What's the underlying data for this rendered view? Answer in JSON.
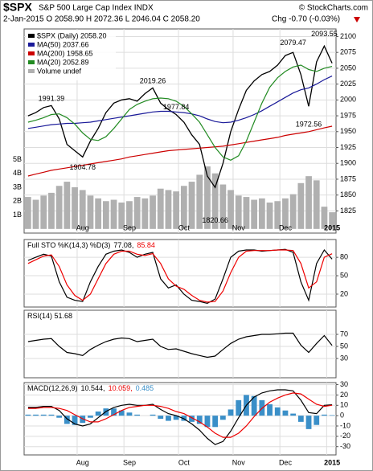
{
  "chart_data": [
    {
      "type": "line",
      "title": "$SPX",
      "subtitle": "S&P 500 Large Cap Index INDX",
      "source": "© StockCharts.com",
      "quote": "2-Jan-2015 O 2058.90 H 2072.36 L 2046.04 C 2058.20",
      "change": "Chg -0.70 (-0.03%)",
      "categories": [
        null,
        null,
        null,
        null,
        null,
        null,
        null,
        "Aug",
        null,
        null,
        null,
        null,
        null,
        "Sep",
        null,
        null,
        null,
        null,
        null,
        null,
        "Oct",
        null,
        null,
        null,
        null,
        null,
        null,
        "Nov",
        null,
        null,
        null,
        null,
        null,
        "Dec",
        null,
        null,
        null,
        null,
        null,
        "2015"
      ],
      "ylim": [
        1790,
        2112
      ],
      "yticks": [
        1825,
        1850,
        1875,
        1900,
        1925,
        1950,
        1975,
        2000,
        2025,
        2050,
        2075,
        2100
      ],
      "series": [
        {
          "name": "$SPX (Daily) 2058.20",
          "color": "#000000",
          "values": [
            1975,
            1980,
            1988,
            1991,
            1970,
            1930,
            1920,
            1910,
            1935,
            1955,
            1980,
            1995,
            2000,
            2002,
            1998,
            2010,
            2019,
            1995,
            1985,
            1977,
            1965,
            1945,
            1930,
            1880,
            1862,
            1900,
            1950,
            1985,
            2015,
            2030,
            2040,
            2045,
            2055,
            2070,
            2075,
            2040,
            1990,
            2060,
            2085,
            2058
          ]
        },
        {
          "name": "MA(50) 2037.66",
          "color": "#1a1a99",
          "values": [
            1955,
            1957,
            1959,
            1961,
            1962,
            1963,
            1963,
            1964,
            1965,
            1967,
            1969,
            1971,
            1973,
            1975,
            1977,
            1979,
            1981,
            1982,
            1982,
            1981,
            1980,
            1978,
            1975,
            1970,
            1966,
            1964,
            1965,
            1968,
            1972,
            1977,
            1983,
            1990,
            1997,
            2004,
            2011,
            2016,
            2019,
            2025,
            2032,
            2037.66
          ]
        },
        {
          "name": "MA(200) 1958.65",
          "color": "#cc0000",
          "values": [
            1880,
            1883,
            1886,
            1889,
            1891,
            1893,
            1895,
            1897,
            1899,
            1901,
            1903,
            1905,
            1907,
            1910,
            1912,
            1914,
            1916,
            1918,
            1920,
            1921,
            1922,
            1923,
            1924,
            1925,
            1926,
            1927,
            1929,
            1931,
            1933,
            1935,
            1937,
            1939,
            1941,
            1944,
            1946,
            1948,
            1950,
            1953,
            1956,
            1958.65
          ]
        },
        {
          "name": "MA(20) 2052.89",
          "color": "#228b22",
          "values": [
            1965,
            1968,
            1972,
            1977,
            1978,
            1972,
            1962,
            1948,
            1938,
            1936,
            1942,
            1955,
            1970,
            1985,
            1993,
            1998,
            2002,
            2003,
            2002,
            1998,
            1990,
            1978,
            1965,
            1945,
            1925,
            1910,
            1905,
            1912,
            1935,
            1965,
            1995,
            2020,
            2035,
            2045,
            2052,
            2055,
            2048,
            2045,
            2050,
            2052.89
          ]
        }
      ],
      "volume": {
        "name": "Volume undef",
        "color": "#b0b0b0",
        "values": [
          2.3,
          2.1,
          2.4,
          2.6,
          3.1,
          3.4,
          3.0,
          2.8,
          2.4,
          2.2,
          2.0,
          2.1,
          1.9,
          2.0,
          2.3,
          2.2,
          2.4,
          2.9,
          2.8,
          2.7,
          3.1,
          3.4,
          3.9,
          4.5,
          4.0,
          3.2,
          2.8,
          2.4,
          2.3,
          2.1,
          2.2,
          1.9,
          2.0,
          2.2,
          2.5,
          3.3,
          3.8,
          3.5,
          1.6,
          1.2
        ]
      },
      "vlim": [
        -0.3,
        14.4
      ],
      "vticks": [
        {
          "value": 1,
          "label": "1B"
        },
        {
          "value": 2,
          "label": "2B"
        },
        {
          "value": 3,
          "label": "3B"
        },
        {
          "value": 4,
          "label": "4B"
        },
        {
          "value": 5,
          "label": "5B"
        }
      ],
      "annotations": [
        1991.39,
        1904.78,
        2019.26,
        1977.84,
        1820.66,
        2079.47,
        2093.55,
        1972.56
      ]
    },
    {
      "type": "line",
      "title": "Full STO %K(14,3) %D(3)",
      "ylim": [
        -1,
        109
      ],
      "yticks": [
        20,
        50,
        80
      ],
      "series": [
        {
          "name": "77.08,",
          "color": "#000000",
          "values": [
            75,
            80,
            85,
            82,
            40,
            15,
            10,
            8,
            40,
            65,
            85,
            90,
            92,
            88,
            80,
            85,
            88,
            45,
            30,
            35,
            20,
            10,
            8,
            5,
            12,
            45,
            80,
            90,
            92,
            92,
            90,
            91,
            92,
            93,
            88,
            40,
            10,
            70,
            92,
            77.08
          ]
        },
        {
          "name": "85.84",
          "color": "#ee0000",
          "values": [
            70,
            76,
            82,
            84,
            65,
            35,
            18,
            10,
            20,
            45,
            70,
            85,
            90,
            90,
            85,
            83,
            86,
            70,
            45,
            33,
            28,
            18,
            10,
            7,
            8,
            25,
            55,
            80,
            90,
            91,
            91,
            91,
            92,
            92,
            91,
            70,
            30,
            40,
            80,
            85.84
          ]
        }
      ]
    },
    {
      "type": "line",
      "title": "RSI(14) 51.68",
      "ylim": [
        -2,
        110
      ],
      "yticks": [
        30,
        50,
        70
      ],
      "series": [
        {
          "name": "RSI(14)",
          "color": "#000000",
          "values": [
            58,
            60,
            62,
            63,
            50,
            40,
            38,
            35,
            45,
            52,
            58,
            62,
            64,
            63,
            58,
            60,
            62,
            50,
            45,
            46,
            42,
            38,
            35,
            32,
            34,
            45,
            55,
            62,
            66,
            68,
            70,
            70,
            71,
            72,
            72,
            52,
            40,
            55,
            68,
            51.68
          ]
        }
      ]
    },
    {
      "type": "line",
      "title": "MACD(12,26,9)",
      "categories": [
        null,
        null,
        null,
        null,
        null,
        null,
        null,
        "Aug",
        null,
        null,
        null,
        null,
        null,
        "Sep",
        null,
        null,
        null,
        null,
        null,
        null,
        "Oct",
        null,
        null,
        null,
        null,
        null,
        null,
        "Nov",
        null,
        null,
        null,
        null,
        null,
        "Dec",
        null,
        null,
        null,
        null,
        null,
        "2015"
      ],
      "ylim": [
        -38,
        32
      ],
      "yticks": [
        30,
        20,
        10,
        0,
        -10,
        -20,
        -30
      ],
      "series": [
        {
          "name": "10.544,",
          "color": "#000000",
          "values": [
            8,
            8,
            9,
            9,
            5,
            -3,
            -8,
            -10,
            -8,
            -2,
            4,
            8,
            10,
            11,
            10,
            10,
            11,
            6,
            2,
            0,
            -3,
            -8,
            -14,
            -22,
            -28,
            -25,
            -15,
            -2,
            10,
            18,
            22,
            24,
            25,
            25,
            24,
            15,
            3,
            2,
            10,
            10.544
          ]
        },
        {
          "name": "10.059,",
          "color": "#ee0000",
          "values": [
            7,
            7,
            8,
            8,
            7,
            5,
            1,
            -3,
            -6,
            -6,
            -3,
            1,
            5,
            8,
            9,
            10,
            10,
            9,
            7,
            4,
            2,
            -2,
            -6,
            -11,
            -17,
            -21,
            -21,
            -17,
            -10,
            -1,
            7,
            13,
            17,
            20,
            22,
            21,
            16,
            11,
            9,
            10.059
          ]
        }
      ],
      "histogram": {
        "name": "0.485",
        "color": "#3a8fc8",
        "values": [
          1,
          1,
          1,
          1,
          -2,
          -8,
          -9,
          -7,
          -2,
          4,
          7,
          7,
          5,
          3,
          1,
          0,
          1,
          -3,
          -5,
          -4,
          -5,
          -6,
          -8,
          -11,
          -11,
          -4,
          6,
          15,
          20,
          19,
          15,
          11,
          8,
          5,
          2,
          -6,
          -13,
          -9,
          1,
          0.485
        ]
      }
    }
  ]
}
